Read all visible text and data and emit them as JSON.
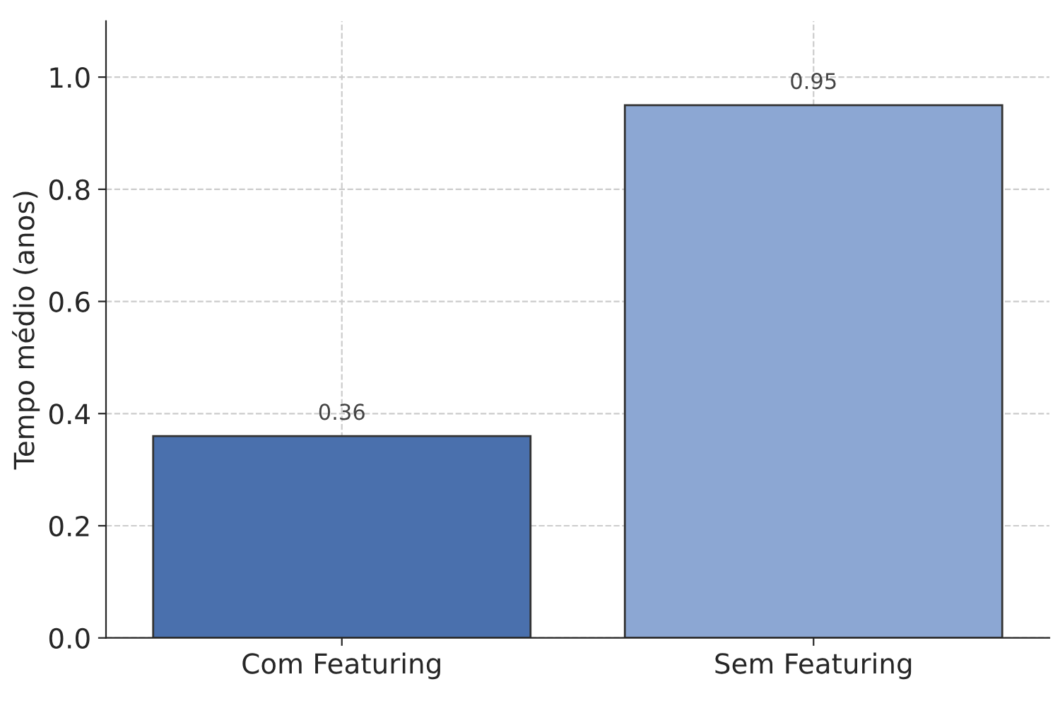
{
  "chart_data": {
    "type": "bar",
    "ylabel": "Tempo médio (anos)",
    "categories": [
      "Com Featuring",
      "Sem Featuring"
    ],
    "values": [
      0.36,
      0.95
    ],
    "colors": [
      "#4a70ad",
      "#8ca7d3"
    ],
    "ylim": [
      0,
      1.1
    ],
    "yticks": [
      {
        "value": 0,
        "label": "0.0"
      },
      0.2,
      0.4,
      0.6,
      0.8,
      {
        "value": 1,
        "label": "1.0"
      }
    ],
    "grid": true,
    "data_labels": true
  }
}
